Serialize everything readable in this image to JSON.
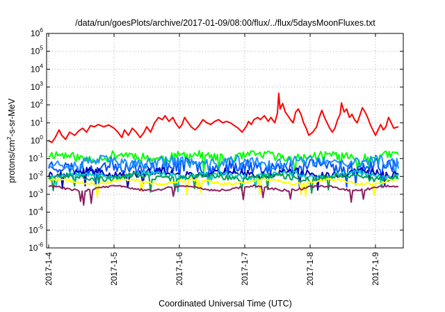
{
  "chart_data": {
    "type": "line",
    "title": "/data/run/goesPlots/archive/2017-01-09/08:00/flux/../flux/5daysMoonFluxes.txt",
    "xlabel": "Coordinated Universal Time (UTC)",
    "ylabel_base": "protons/cm",
    "ylabel_sup": "2",
    "ylabel_rest": "-s-sr-MeV",
    "y_scale": "log",
    "ylim": [
      1e-06,
      1000000.0
    ],
    "y_ticks": [
      {
        "mant": "10",
        "exp": "-6",
        "v": -6
      },
      {
        "mant": "10",
        "exp": "-5",
        "v": -5
      },
      {
        "mant": "10",
        "exp": "-4",
        "v": -4
      },
      {
        "mant": "10",
        "exp": "-3",
        "v": -3
      },
      {
        "mant": "10",
        "exp": "-2",
        "v": -2
      },
      {
        "mant": "10",
        "exp": "-1",
        "v": -1
      },
      {
        "mant": "10",
        "exp": "0",
        "v": 0
      },
      {
        "mant": "10",
        "exp": "1",
        "v": 1
      },
      {
        "mant": "10",
        "exp": "2",
        "v": 2
      },
      {
        "mant": "10",
        "exp": "3",
        "v": 3
      },
      {
        "mant": "10",
        "exp": "4",
        "v": 4
      },
      {
        "mant": "10",
        "exp": "5",
        "v": 5
      },
      {
        "mant": "10",
        "exp": "6",
        "v": 6
      }
    ],
    "x_tick_labels": [
      "2017-1-4",
      "2017-1-5",
      "2017-1-6",
      "2017-1-7",
      "2017-1-8",
      "2017-1-9"
    ],
    "x_range_days": [
      0,
      5.35
    ],
    "grid": true,
    "series": [
      {
        "color": "#ff0000",
        "points": [
          [
            0.0,
            1.0
          ],
          [
            0.05,
            0.8
          ],
          [
            0.1,
            1.5
          ],
          [
            0.16,
            4.0
          ],
          [
            0.2,
            2.0
          ],
          [
            0.26,
            1.2
          ],
          [
            0.32,
            3.0
          ],
          [
            0.4,
            2.0
          ],
          [
            0.46,
            3.5
          ],
          [
            0.52,
            5.0
          ],
          [
            0.58,
            3.0
          ],
          [
            0.64,
            7.0
          ],
          [
            0.7,
            6.0
          ],
          [
            0.76,
            8.0
          ],
          [
            0.84,
            6.0
          ],
          [
            0.92,
            7.5
          ],
          [
            1.0,
            5.0
          ],
          [
            1.06,
            3.0
          ],
          [
            1.12,
            1.5
          ],
          [
            1.16,
            4.0
          ],
          [
            1.22,
            2.0
          ],
          [
            1.28,
            5.0
          ],
          [
            1.34,
            3.0
          ],
          [
            1.4,
            1.5
          ],
          [
            1.46,
            3.0
          ],
          [
            1.5,
            6.0
          ],
          [
            1.56,
            3.0
          ],
          [
            1.62,
            10.0
          ],
          [
            1.68,
            20.0
          ],
          [
            1.74,
            15.0
          ],
          [
            1.78,
            25.0
          ],
          [
            1.84,
            12.0
          ],
          [
            1.9,
            20.0
          ],
          [
            1.94,
            10.0
          ],
          [
            2.0,
            5.0
          ],
          [
            2.04,
            8.0
          ],
          [
            2.08,
            20.0
          ],
          [
            2.12,
            12.0
          ],
          [
            2.18,
            6.0
          ],
          [
            2.24,
            4.0
          ],
          [
            2.3,
            7.0
          ],
          [
            2.36,
            15.0
          ],
          [
            2.42,
            10.0
          ],
          [
            2.48,
            8.0
          ],
          [
            2.54,
            12.0
          ],
          [
            2.6,
            15.0
          ],
          [
            2.66,
            10.0
          ],
          [
            2.72,
            12.0
          ],
          [
            2.78,
            10.0
          ],
          [
            2.84,
            7.0
          ],
          [
            2.9,
            5.0
          ],
          [
            2.96,
            3.0
          ],
          [
            3.02,
            6.0
          ],
          [
            3.06,
            12.0
          ],
          [
            3.1,
            8.0
          ],
          [
            3.14,
            15.0
          ],
          [
            3.2,
            20.0
          ],
          [
            3.24,
            15.0
          ],
          [
            3.3,
            25.0
          ],
          [
            3.36,
            12.0
          ],
          [
            3.4,
            20.0
          ],
          [
            3.46,
            10.0
          ],
          [
            3.5,
            35.0
          ],
          [
            3.52,
            450.0
          ],
          [
            3.54,
            60.0
          ],
          [
            3.58,
            120.0
          ],
          [
            3.62,
            40.0
          ],
          [
            3.66,
            25.0
          ],
          [
            3.7,
            15.0
          ],
          [
            3.74,
            10.0
          ],
          [
            3.78,
            40.0
          ],
          [
            3.82,
            60.0
          ],
          [
            3.86,
            30.0
          ],
          [
            3.9,
            10.0
          ],
          [
            3.94,
            5.0
          ],
          [
            3.98,
            2.0
          ],
          [
            4.04,
            3.0
          ],
          [
            4.1,
            6.0
          ],
          [
            4.14,
            20.0
          ],
          [
            4.18,
            50.0
          ],
          [
            4.22,
            20.0
          ],
          [
            4.26,
            10.0
          ],
          [
            4.3,
            5.0
          ],
          [
            4.34,
            3.0
          ],
          [
            4.38,
            5.0
          ],
          [
            4.42,
            15.0
          ],
          [
            4.46,
            30.0
          ],
          [
            4.48,
            130.0
          ],
          [
            4.52,
            40.0
          ],
          [
            4.56,
            60.0
          ],
          [
            4.6,
            20.0
          ],
          [
            4.64,
            30.0
          ],
          [
            4.68,
            15.0
          ],
          [
            4.72,
            10.0
          ],
          [
            4.76,
            25.0
          ],
          [
            4.8,
            70.0
          ],
          [
            4.84,
            40.0
          ],
          [
            4.88,
            20.0
          ],
          [
            4.92,
            8.0
          ],
          [
            4.96,
            4.0
          ],
          [
            5.0,
            2.0
          ],
          [
            5.04,
            4.0
          ],
          [
            5.08,
            8.0
          ],
          [
            5.12,
            4.0
          ],
          [
            5.16,
            6.0
          ],
          [
            5.2,
            20.0
          ],
          [
            5.24,
            10.0
          ],
          [
            5.28,
            5.0
          ],
          [
            5.35,
            6.0
          ]
        ]
      },
      {
        "color": "#00ff00",
        "level": 0.13,
        "amp": 0.25,
        "seed": 11
      },
      {
        "color": "#0050ff",
        "level": 0.035,
        "amp": 0.4,
        "seed": 23
      },
      {
        "color": "#1e90ff",
        "level": 0.06,
        "amp": 0.3,
        "seed": 37
      },
      {
        "color": "#0000b4",
        "level": 0.015,
        "amp": 0.2,
        "seed": 41
      },
      {
        "color": "#00c8c8",
        "level": 0.012,
        "amp": 0.15,
        "seed": 53
      },
      {
        "color": "#00a050",
        "level": 0.009,
        "amp": 0.15,
        "seed": 67
      },
      {
        "color": "#ffff00",
        "level": 0.005,
        "amp": 0.08,
        "seed": 71
      },
      {
        "color": "#8b2060",
        "level": 0.0022,
        "amp": 0.06,
        "seed": 83
      }
    ]
  }
}
